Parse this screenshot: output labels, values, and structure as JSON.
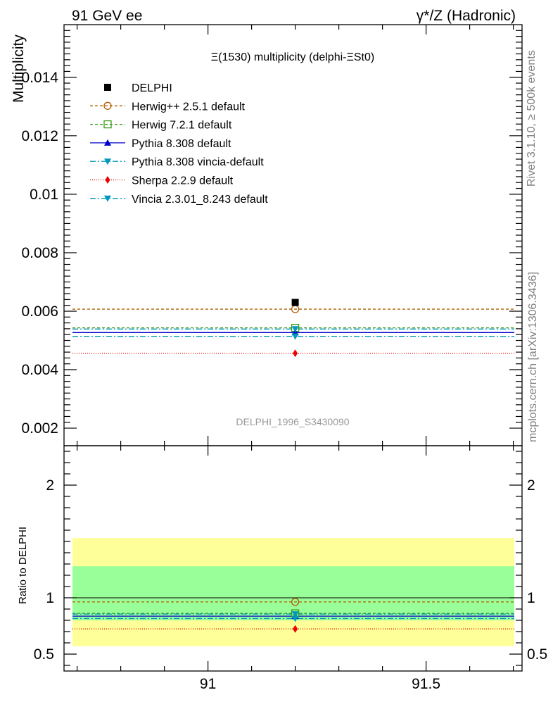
{
  "header": {
    "left": "91 GeV ee",
    "right": "γ*/Z (Hadronic)"
  },
  "side_labels": {
    "rivet": "Rivet 3.1.10, ≥ 500k events",
    "mcplots": "mcplots.cern.ch [arXiv:1306.3436]"
  },
  "chart_data": {
    "type": "scatter",
    "title": "Ξ(1530) multiplicity (delphi-ΞSt0)",
    "ylabel": "Multiplicity",
    "watermark": "DELPHI_1996_S3430090",
    "xlim": [
      90.67,
      91.72
    ],
    "ylim": [
      0.0014,
      0.0158
    ],
    "x_point": 91.2,
    "y_ticks": [
      0.002,
      0.004,
      0.006,
      0.008,
      0.01,
      0.012,
      0.014
    ],
    "y_tick_labels": [
      "0.002",
      "0.004",
      "0.006",
      "0.008",
      "0.01",
      "0.012",
      "0.014"
    ],
    "data": {
      "name": "DELPHI",
      "x": 91.2,
      "y": 0.0063,
      "color": "#000000"
    },
    "series": [
      {
        "name": "Herwig++ 2.5.1 default",
        "value": 0.00607,
        "color": "#b15c00",
        "dash": "4,3",
        "marker": "circle-open"
      },
      {
        "name": "Herwig 7.2.1 default",
        "value": 0.00543,
        "color": "#3a9a1a",
        "dash": "4,3",
        "marker": "square-open"
      },
      {
        "name": "Pythia 8.308 default",
        "value": 0.00527,
        "color": "#0000cc",
        "dash": "",
        "marker": "triangle-up"
      },
      {
        "name": "Pythia 8.308 vincia-default",
        "value": 0.00514,
        "color": "#0099bb",
        "dash": "8,3,2,3",
        "marker": "triangle-down"
      },
      {
        "name": "Sherpa 2.2.9 default",
        "value": 0.00456,
        "color": "#ee0000",
        "dash": "1,2",
        "marker": "diamond"
      },
      {
        "name": "Vincia 2.3.01_8.243 default",
        "value": 0.00539,
        "color": "#0099bb",
        "dash": "8,3,2,3",
        "marker": "triangle-down"
      }
    ],
    "ratio": {
      "ylabel": "Ratio to DELPHI",
      "ylim": [
        0.35,
        2.35
      ],
      "y_ticks": [
        0.5,
        1,
        2
      ],
      "y_tick_labels": [
        "0.5",
        "1",
        "2"
      ],
      "band_outer": [
        0.57,
        1.53
      ],
      "band_inner": [
        0.8,
        1.28
      ],
      "band_outer_color": "#ffff99",
      "band_inner_color": "#99ff99"
    },
    "x_ticks": [
      91,
      91.5
    ],
    "x_tick_labels": [
      "91",
      "91.5"
    ]
  }
}
